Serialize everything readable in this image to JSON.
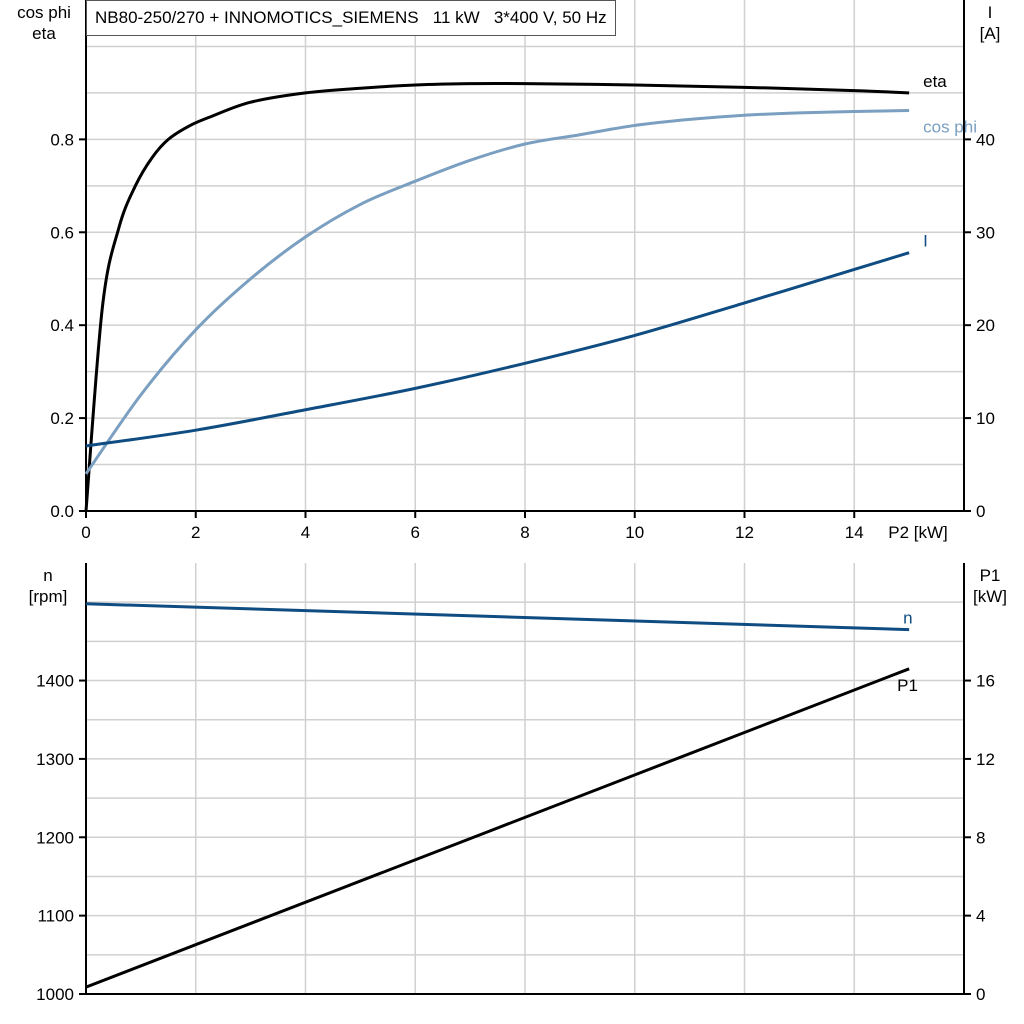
{
  "title": "NB80-250/270 + INNOMOTICS_SIEMENS   11 kW   3*400 V, 50 Hz",
  "chart_data": [
    {
      "type": "line",
      "xlabel": "P2 [kW]",
      "ylabel_left": [
        "cos phi",
        "eta"
      ],
      "ylabel_right": [
        "I",
        "[A]"
      ],
      "xlim": [
        0,
        16
      ],
      "ylim_left": [
        0,
        1.1
      ],
      "ylim_right": [
        0,
        55
      ],
      "xticks": [
        0,
        2,
        4,
        6,
        8,
        10,
        12,
        14
      ],
      "yticks_left": [
        "0.0",
        "0.2",
        "0.4",
        "0.6",
        "0.8"
      ],
      "yticks_right": [
        0,
        10,
        20,
        30,
        40
      ],
      "grid": true,
      "series": [
        {
          "name": "eta",
          "axis": "left",
          "color": "#000000",
          "x": [
            0,
            0.3,
            0.6,
            0.9,
            1.2,
            1.5,
            1.9,
            2.3,
            3,
            4,
            5,
            6,
            7,
            8,
            10,
            12,
            14,
            15
          ],
          "y": [
            0,
            0.44,
            0.61,
            0.7,
            0.76,
            0.8,
            0.83,
            0.85,
            0.88,
            0.9,
            0.91,
            0.917,
            0.92,
            0.92,
            0.917,
            0.912,
            0.905,
            0.9
          ]
        },
        {
          "name": "cos phi",
          "axis": "left",
          "color": "#7a9fc0",
          "x": [
            0,
            1,
            2,
            3,
            4,
            5,
            6,
            7,
            8,
            9,
            10,
            11,
            12,
            13,
            14,
            15
          ],
          "y": [
            0.08,
            0.25,
            0.39,
            0.5,
            0.59,
            0.66,
            0.71,
            0.755,
            0.79,
            0.81,
            0.83,
            0.843,
            0.852,
            0.857,
            0.86,
            0.862
          ]
        },
        {
          "name": "I",
          "axis": "right",
          "color": "#0f4c81",
          "x": [
            0,
            2,
            4,
            6,
            8,
            10,
            12,
            14,
            15
          ],
          "y": [
            7.0,
            8.7,
            10.9,
            13.2,
            15.9,
            18.9,
            22.4,
            26.0,
            27.8
          ]
        }
      ]
    },
    {
      "type": "line",
      "ylabel_left": [
        "n",
        "[rpm]"
      ],
      "ylabel_right": [
        "P1",
        "[kW]"
      ],
      "xlim": [
        0,
        16
      ],
      "ylim_left": [
        1000,
        1550
      ],
      "ylim_right": [
        0,
        22
      ],
      "yticks_left": [
        1000,
        1100,
        1200,
        1300,
        1400
      ],
      "yticks_right": [
        0,
        4,
        8,
        12,
        16
      ],
      "grid": true,
      "series": [
        {
          "name": "n",
          "axis": "left",
          "color": "#0f4c81",
          "x": [
            0,
            15
          ],
          "y": [
            1498,
            1465
          ]
        },
        {
          "name": "P1",
          "axis": "right",
          "color": "#000000",
          "x": [
            0,
            15
          ],
          "y": [
            0.35,
            16.6
          ]
        }
      ]
    }
  ]
}
